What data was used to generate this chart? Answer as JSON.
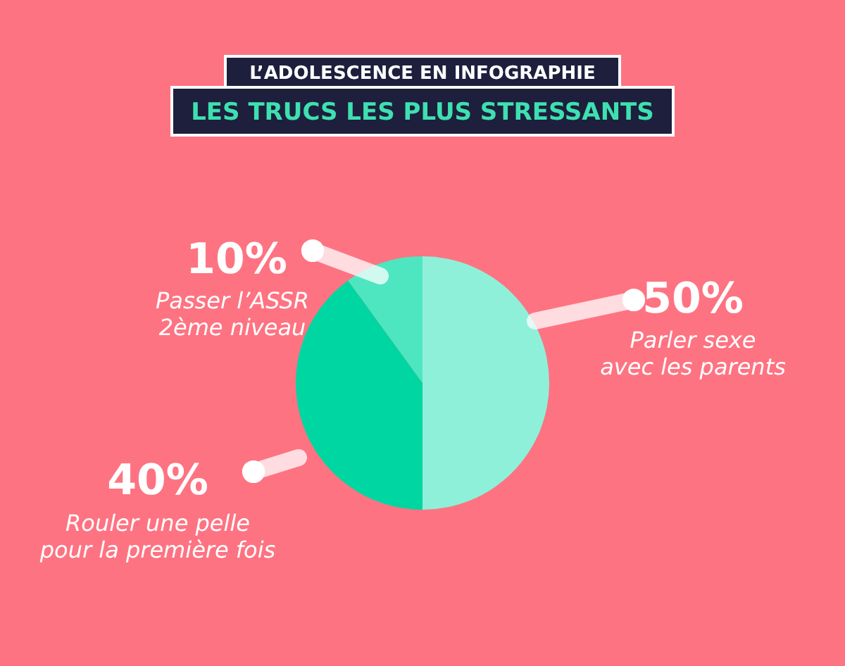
{
  "chart_data": {
    "type": "pie",
    "title": "L’ADOLESCENCE EN INFOGRAPHIE",
    "subtitle": "LES TRUCS LES PLUS STRESSANTS",
    "categories": [
      "Parler sexe avec les parents",
      "Rouler une pelle pour la première fois",
      "Passer l’ASSR 2ème niveau"
    ],
    "values": [
      50,
      40,
      10
    ],
    "colors": [
      "#8ff0d9",
      "#00d6a2",
      "#4ee6c0"
    ],
    "value_labels": [
      "50%",
      "40%",
      "10%"
    ]
  }
}
